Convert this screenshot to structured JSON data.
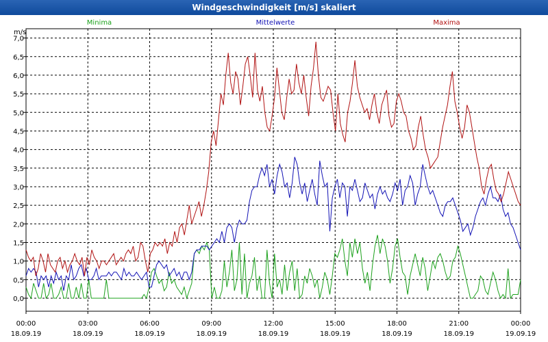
{
  "window": {
    "title": "Windgeschwindigkeit [m/s] skaliert"
  },
  "chart_data": {
    "type": "line",
    "title": "Windgeschwindigkeit [m/s] skaliert",
    "ylabel": "m/s",
    "ylim": [
      -0.35,
      7.25
    ],
    "yticks": [
      "0,0",
      "0,5",
      "1,0",
      "1,5",
      "2,0",
      "2,5",
      "3,0",
      "3,5",
      "4,0",
      "4,5",
      "5,0",
      "5,5",
      "6,0",
      "6,5",
      "7,0"
    ],
    "xlim": [
      0,
      24
    ],
    "xticks": [
      {
        "time": "00:00",
        "date": "18.09.19"
      },
      {
        "time": "03:00",
        "date": "18.09.19"
      },
      {
        "time": "06:00",
        "date": "18.09.19"
      },
      {
        "time": "09:00",
        "date": "18.09.19"
      },
      {
        "time": "12:00",
        "date": "18.09.19"
      },
      {
        "time": "15:00",
        "date": "18.09.19"
      },
      {
        "time": "18:00",
        "date": "18.09.19"
      },
      {
        "time": "21:00",
        "date": "18.09.19"
      },
      {
        "time": "00:00",
        "date": "19.09.19"
      }
    ],
    "grid": true,
    "series": [
      {
        "name": "Minima",
        "color": "#1aa01a",
        "position": "left",
        "values": [
          0.3,
          0.1,
          0.0,
          0.4,
          0.2,
          0.0,
          0.0,
          0.4,
          0.0,
          0.1,
          0.4,
          0.0,
          0.0,
          0.1,
          0.3,
          0.0,
          0.0,
          0.4,
          0.0,
          0.0,
          0.3,
          0.0,
          0.4,
          0.0,
          0.0,
          0.5,
          0.0,
          0.0,
          0.0,
          0.0,
          0.0,
          0.0,
          0.5,
          0.0,
          0.0,
          0.0,
          0.0,
          0.0,
          0.0,
          0.0,
          0.0,
          0.0,
          0.0,
          0.0,
          0.0,
          0.0,
          0.0,
          0.1,
          0.0,
          0.3,
          0.7,
          0.8,
          0.6,
          0.4,
          0.5,
          0.2,
          0.3,
          0.7,
          0.4,
          0.5,
          0.3,
          0.2,
          0.1,
          0.3,
          0.0,
          0.2,
          0.4,
          1.2,
          1.3,
          1.2,
          1.4,
          1.3,
          1.5,
          1.3,
          0.0,
          0.3,
          0.0,
          0.0,
          0.2,
          1.0,
          0.3,
          0.7,
          1.3,
          0.2,
          0.5,
          1.5,
          0.1,
          1.2,
          0.0,
          0.4,
          0.6,
          1.1,
          0.2,
          0.6,
          0.0,
          0.0,
          1.3,
          0.4,
          0.0,
          1.2,
          0.3,
          0.5,
          0.1,
          0.9,
          0.2,
          0.7,
          1.0,
          0.2,
          0.8,
          0.0,
          0.1,
          0.6,
          0.4,
          0.8,
          0.6,
          0.3,
          0.5,
          0.0,
          0.3,
          0.7,
          0.5,
          0.1,
          0.6,
          1.2,
          1.1,
          1.3,
          1.6,
          1.0,
          0.6,
          1.5,
          1.1,
          1.6,
          1.2,
          1.5,
          0.8,
          0.4,
          0.7,
          0.2,
          0.9,
          1.4,
          1.7,
          1.2,
          1.6,
          1.4,
          1.0,
          0.4,
          0.8,
          1.4,
          1.6,
          1.1,
          0.7,
          0.6,
          0.1,
          0.6,
          0.9,
          1.2,
          0.9,
          0.6,
          1.1,
          0.8,
          0.2,
          0.6,
          1.0,
          0.8,
          1.1,
          1.2,
          1.0,
          0.7,
          0.5,
          0.6,
          1.0,
          1.1,
          1.4,
          1.2,
          0.9,
          0.6,
          0.3,
          0.0,
          0.0,
          0.1,
          0.2,
          0.6,
          0.5,
          0.2,
          0.1,
          0.4,
          0.7,
          0.5,
          0.2,
          0.0,
          0.1,
          0.0,
          0.8,
          0.0,
          0.1,
          0.1,
          0.1,
          0.5
        ]
      },
      {
        "name": "Mittelwerte",
        "color": "#1010b4",
        "position": "center",
        "values": [
          0.6,
          0.8,
          0.7,
          0.8,
          0.7,
          0.3,
          0.6,
          0.5,
          0.6,
          0.3,
          0.6,
          0.4,
          0.7,
          0.5,
          0.6,
          0.2,
          0.6,
          0.5,
          0.9,
          0.5,
          0.6,
          0.8,
          0.9,
          0.6,
          0.8,
          0.5,
          0.5,
          0.6,
          0.8,
          0.5,
          0.6,
          0.6,
          0.6,
          0.7,
          0.6,
          0.7,
          0.7,
          0.6,
          0.5,
          0.8,
          0.6,
          0.7,
          0.6,
          0.6,
          0.7,
          0.6,
          0.5,
          0.6,
          0.7,
          0.3,
          0.3,
          0.6,
          0.9,
          1.0,
          0.9,
          0.8,
          0.9,
          0.6,
          0.7,
          0.8,
          0.6,
          0.7,
          0.5,
          0.7,
          0.7,
          0.5,
          0.7,
          1.2,
          1.3,
          1.3,
          1.4,
          1.4,
          1.4,
          1.3,
          1.4,
          1.5,
          1.6,
          1.5,
          1.8,
          1.5,
          1.9,
          2.0,
          1.9,
          1.5,
          1.9,
          2.1,
          2.0,
          2.0,
          2.1,
          2.6,
          2.9,
          3.0,
          3.0,
          3.3,
          3.5,
          3.3,
          3.6,
          3.0,
          3.2,
          2.8,
          3.3,
          3.6,
          3.4,
          3.0,
          3.1,
          2.7,
          3.1,
          3.8,
          3.6,
          3.1,
          2.8,
          3.1,
          2.6,
          2.9,
          3.2,
          2.8,
          2.5,
          3.7,
          3.3,
          3.0,
          3.1,
          1.8,
          2.7,
          3.0,
          3.2,
          2.7,
          3.1,
          3.0,
          2.2,
          3.0,
          2.9,
          3.2,
          2.9,
          2.6,
          2.7,
          3.1,
          2.9,
          2.7,
          2.8,
          2.4,
          2.8,
          3.0,
          2.8,
          2.9,
          2.7,
          2.6,
          2.8,
          3.1,
          2.9,
          3.2,
          2.5,
          2.9,
          3.0,
          3.3,
          3.1,
          2.5,
          2.8,
          3.0,
          3.6,
          3.3,
          3.0,
          2.8,
          2.9,
          2.7,
          2.5,
          2.3,
          2.2,
          2.5,
          2.6,
          2.6,
          2.7,
          2.5,
          2.3,
          2.1,
          1.8,
          1.9,
          2.0,
          1.7,
          1.9,
          2.2,
          2.4,
          2.6,
          2.7,
          2.5,
          2.8,
          3.0,
          2.7,
          2.7,
          2.6,
          2.8,
          2.4,
          2.2,
          2.3,
          2.0,
          1.9,
          1.7,
          1.5,
          1.3
        ]
      },
      {
        "name": "Maxima",
        "color": "#b01010",
        "position": "right",
        "values": [
          1.3,
          1.1,
          1.0,
          1.1,
          0.6,
          0.8,
          1.2,
          1.0,
          0.7,
          1.2,
          0.9,
          0.8,
          0.7,
          1.0,
          1.1,
          0.8,
          1.0,
          0.7,
          0.9,
          1.0,
          1.2,
          1.0,
          0.9,
          1.1,
          0.6,
          1.1,
          0.9,
          1.3,
          1.1,
          1.0,
          0.8,
          1.0,
          1.0,
          0.9,
          1.0,
          1.1,
          1.2,
          0.9,
          1.0,
          1.1,
          1.0,
          1.2,
          1.3,
          1.2,
          1.4,
          1.0,
          1.1,
          1.5,
          1.4,
          1.0,
          0.7,
          1.2,
          1.3,
          1.5,
          1.4,
          1.5,
          1.4,
          1.6,
          1.2,
          1.5,
          1.4,
          1.8,
          1.5,
          1.9,
          2.0,
          1.7,
          2.1,
          2.5,
          2.0,
          2.2,
          2.4,
          2.6,
          2.2,
          2.5,
          2.9,
          3.4,
          4.2,
          4.5,
          4.1,
          4.8,
          5.5,
          5.2,
          6.0,
          6.6,
          5.8,
          5.5,
          6.1,
          5.9,
          5.2,
          5.7,
          6.3,
          6.5,
          6.0,
          5.4,
          6.6,
          5.6,
          5.3,
          5.7,
          5.0,
          4.6,
          4.5,
          4.9,
          5.4,
          6.2,
          5.6,
          5.0,
          4.8,
          5.4,
          5.9,
          5.5,
          5.6,
          6.3,
          5.8,
          5.5,
          6.0,
          5.4,
          4.9,
          5.7,
          6.2,
          6.9,
          6.0,
          5.4,
          5.3,
          5.5,
          5.7,
          5.6,
          5.0,
          4.5,
          5.5,
          4.7,
          4.4,
          4.2,
          5.0,
          5.3,
          5.8,
          6.4,
          5.7,
          5.4,
          5.2,
          5.0,
          5.1,
          4.8,
          5.2,
          5.5,
          5.0,
          4.7,
          5.2,
          5.4,
          5.6,
          4.9,
          4.6,
          4.7,
          5.3,
          5.5,
          5.3,
          5.0,
          4.9,
          4.5,
          4.3,
          4.0,
          4.1,
          4.6,
          4.9,
          4.4,
          4.0,
          3.8,
          3.5,
          3.6,
          3.7,
          3.8,
          4.2,
          4.6,
          4.9,
          5.2,
          5.7,
          6.1,
          5.3,
          5.0,
          4.6,
          4.3,
          4.6,
          5.2,
          5.0,
          4.6,
          4.2,
          3.8,
          3.5,
          3.0,
          2.8,
          3.2,
          3.5,
          3.6,
          3.2,
          2.9,
          2.8,
          2.6,
          2.8,
          3.1,
          3.4,
          3.2,
          3.0,
          2.8,
          2.6,
          2.5
        ]
      }
    ]
  }
}
